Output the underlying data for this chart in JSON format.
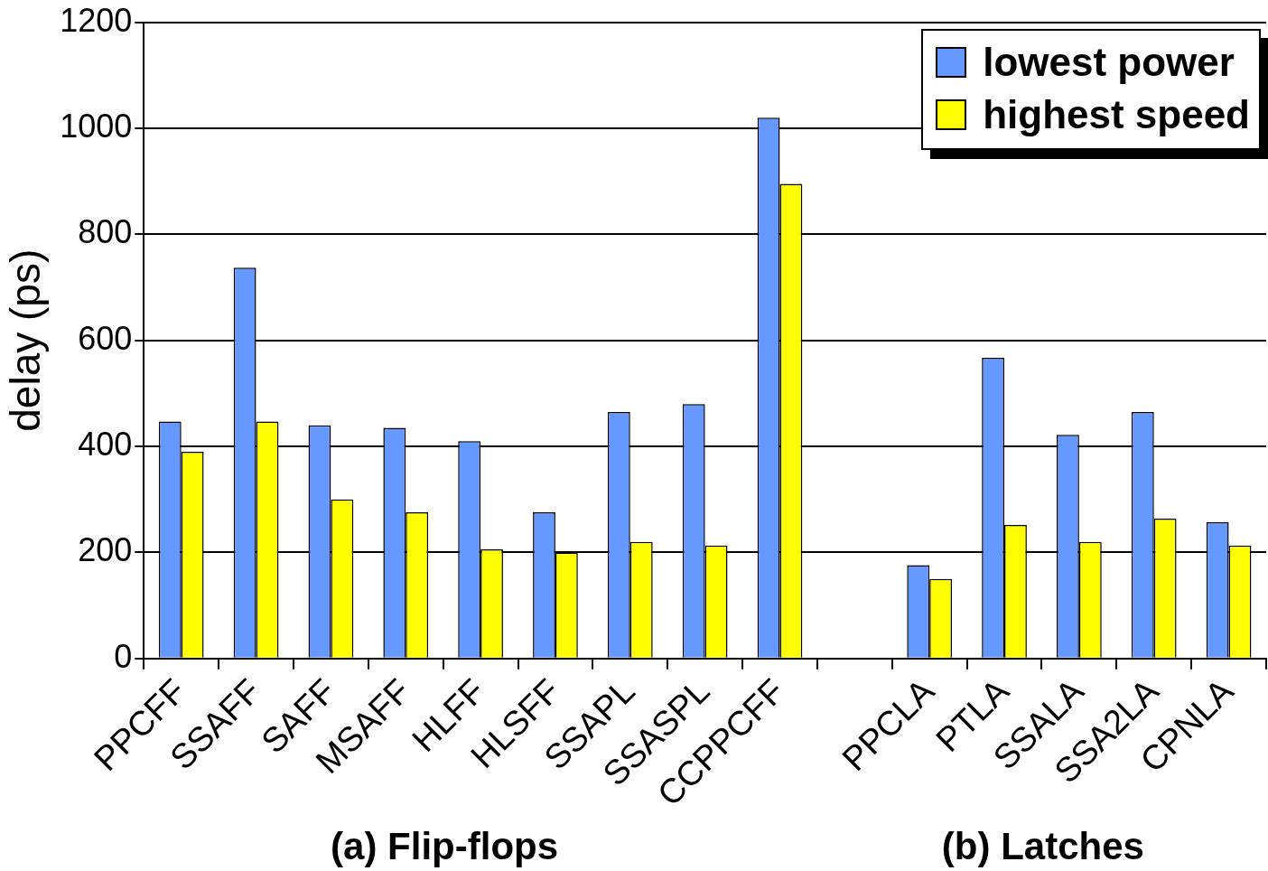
{
  "chart_data": {
    "type": "bar",
    "ylabel": "delay (ps)",
    "categories": [
      "PPCFF",
      "SSAFF",
      "SAFF",
      "MSAFF",
      "HLFF",
      "HLSFF",
      "SSAPL",
      "SSASPL",
      "CCPPCFF",
      null,
      "PPCLA",
      "PTLA",
      "SSALA",
      "SSA2LA",
      "CPNLA"
    ],
    "series": [
      {
        "name": "lowest power",
        "color": "#6699ff",
        "values": [
          447,
          737,
          440,
          435,
          410,
          276,
          465,
          480,
          1020,
          null,
          176,
          567,
          422,
          465,
          257
        ]
      },
      {
        "name": "highest speed",
        "color": "#ffff00",
        "values": [
          390,
          447,
          300,
          276,
          206,
          200,
          220,
          213,
          895,
          null,
          150,
          252,
          220,
          264,
          213
        ]
      }
    ],
    "ylim": [
      0,
      1200
    ],
    "yticks": [
      0,
      200,
      400,
      600,
      800,
      1000,
      1200
    ],
    "grid": "y",
    "legend": "top right",
    "annotations": [
      "(a) Flip-flops",
      "(b) Latches"
    ]
  }
}
